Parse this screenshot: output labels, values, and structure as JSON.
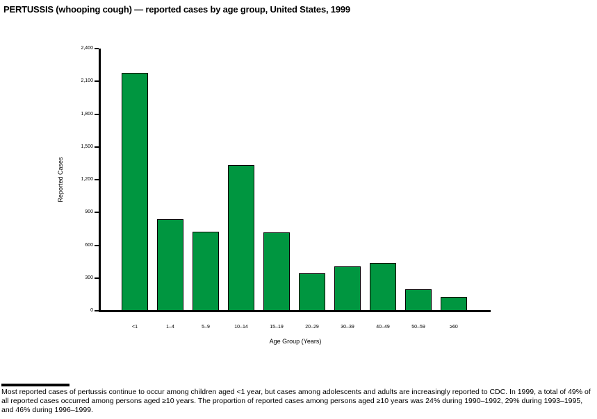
{
  "title": "PERTUSSIS (whooping cough) — reported cases by age group, United States, 1999",
  "chart_data": {
    "type": "bar",
    "title": "PERTUSSIS (whooping cough) — reported cases by age group, United States, 1999",
    "categories": [
      "<1",
      "1–4",
      "5–9",
      "10–14",
      "15–19",
      "20–29",
      "30–39",
      "40–49",
      "50–59",
      "≥60"
    ],
    "values": [
      2175,
      835,
      725,
      1335,
      715,
      345,
      405,
      440,
      195,
      125
    ],
    "xlabel": "Age Group (Years)",
    "ylabel": "Reported Cases",
    "ylim": [
      0,
      2400
    ],
    "ytick_interval": 300,
    "ytick_labels": [
      "0",
      "300",
      "600",
      "900",
      "1,200",
      "1,500",
      "1,800",
      "2,100",
      "2,400"
    ],
    "bar_color": "#009640",
    "bar_border_color": "#000000",
    "grid": false,
    "legend": false
  },
  "footnote": {
    "text": "Most reported cases of pertussis continue to occur among children aged <1 year, but cases among adolescents and adults are increasingly reported to CDC. In 1999, a total of 49% of all reported cases occurred among persons aged ≥10 years. The proportion of reported cases among persons aged ≥10 years was 24% during 1990–1992, 29% during 1993–1995, and 46% during 1996–1999."
  }
}
